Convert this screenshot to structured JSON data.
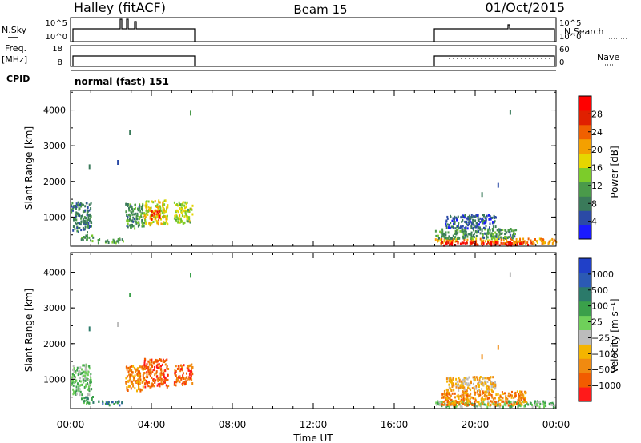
{
  "header": {
    "station": "Halley (fitACF)",
    "beam": "Beam 15",
    "date": "01/Oct/2015"
  },
  "status_panels": {
    "nsky": {
      "label": "N.Sky",
      "ticks": [
        "10^5",
        "10^0"
      ]
    },
    "nsearch": {
      "label": "N.Search",
      "ticks": [
        "10^5",
        "10^0"
      ]
    },
    "freq": {
      "label_top": "Freq.",
      "label_bottom": "[MHz]",
      "ticks": [
        "18",
        "8"
      ]
    },
    "nave": {
      "label": "Nave",
      "ticks": [
        "60",
        "0"
      ]
    },
    "cpid": {
      "label": "CPID",
      "value": "normal (fast) 151"
    }
  },
  "colors": {
    "power_scale": [
      "#1a1aff",
      "#2b4aa6",
      "#3a7a5a",
      "#4a9a4a",
      "#7ccc2a",
      "#e6d600",
      "#f4a000",
      "#f06000",
      "#e02000",
      "#ff0000"
    ],
    "velocity_scale": [
      "#ff1a1a",
      "#f25c00",
      "#f08a10",
      "#f4b400",
      "#bcbcbc",
      "#6fd05a",
      "#3aa04a",
      "#2b7a6a",
      "#2b5ab4",
      "#2040c8"
    ]
  },
  "chart_data": [
    {
      "type": "heatmap",
      "name": "power",
      "xlabel": "Time UT",
      "ylabel": "Slant Range [km]",
      "xticks": [
        "00:00",
        "04:00",
        "08:00",
        "12:00",
        "16:00",
        "20:00",
        "00:00"
      ],
      "xlim": [
        0,
        24
      ],
      "ylim": [
        180,
        4550
      ],
      "yticks": [
        1000,
        2000,
        3000,
        4000
      ],
      "colorbar": {
        "label": "Power [dB]",
        "ticks": [
          "4",
          "8",
          "12",
          "16",
          "20",
          "24",
          "28"
        ],
        "range": [
          0,
          32
        ]
      },
      "patches": [
        {
          "t0": 0.0,
          "t1": 1.0,
          "r0": 600,
          "r1": 1450,
          "level": 8
        },
        {
          "t0": 0.5,
          "t1": 1.1,
          "r0": 350,
          "r1": 550,
          "level": 10
        },
        {
          "t0": 1.3,
          "t1": 2.6,
          "r0": 300,
          "r1": 420,
          "level": 12
        },
        {
          "t0": 2.7,
          "t1": 3.6,
          "r0": 700,
          "r1": 1400,
          "level": 10
        },
        {
          "t0": 3.6,
          "t1": 4.8,
          "r0": 800,
          "r1": 1500,
          "level": 18
        },
        {
          "t0": 3.9,
          "t1": 4.4,
          "r0": 950,
          "r1": 1200,
          "level": 26
        },
        {
          "t0": 5.1,
          "t1": 6.0,
          "r0": 850,
          "r1": 1450,
          "level": 16
        },
        {
          "t0": 18.0,
          "t1": 24.0,
          "r0": 280,
          "r1": 420,
          "level": 22
        },
        {
          "t0": 18.3,
          "t1": 22.8,
          "r0": 230,
          "r1": 330,
          "level": 29
        },
        {
          "t0": 18.0,
          "t1": 22.0,
          "r0": 420,
          "r1": 700,
          "level": 10
        },
        {
          "t0": 18.5,
          "t1": 21.0,
          "r0": 700,
          "r1": 1100,
          "level": 6
        }
      ],
      "scatter": [
        {
          "t": 0.9,
          "r": 2480,
          "level": 8
        },
        {
          "t": 2.3,
          "r": 2600,
          "level": 6
        },
        {
          "t": 2.9,
          "r": 3430,
          "level": 8
        },
        {
          "t": 5.9,
          "r": 3980,
          "level": 10
        },
        {
          "t": 21.7,
          "r": 4000,
          "level": 8
        },
        {
          "t": 21.1,
          "r": 1960,
          "level": 6
        },
        {
          "t": 20.3,
          "r": 1700,
          "level": 8
        }
      ]
    },
    {
      "type": "heatmap",
      "name": "velocity",
      "xlabel": "Time UT",
      "ylabel": "Slant Range [km]",
      "xticks": [
        "00:00",
        "04:00",
        "08:00",
        "12:00",
        "16:00",
        "20:00",
        "00:00"
      ],
      "xlim": [
        0,
        24
      ],
      "ylim": [
        180,
        4550
      ],
      "yticks": [
        1000,
        2000,
        3000,
        4000
      ],
      "colorbar": {
        "label": "Velocity [m s⁻¹]",
        "ticks": [
          "1000",
          "500",
          "100",
          "25",
          "−25",
          "−100",
          "−500",
          "−1000"
        ]
      },
      "patches": [
        {
          "t0": 0.0,
          "t1": 1.0,
          "r0": 600,
          "r1": 1450,
          "level": 5
        },
        {
          "t0": 0.5,
          "t1": 1.1,
          "r0": 350,
          "r1": 550,
          "level": 6
        },
        {
          "t0": 1.3,
          "t1": 2.6,
          "r0": 300,
          "r1": 420,
          "level": 7
        },
        {
          "t0": 2.7,
          "t1": 3.6,
          "r0": 700,
          "r1": 1400,
          "level": 2
        },
        {
          "t0": 3.6,
          "t1": 4.8,
          "r0": 800,
          "r1": 1600,
          "level": 1
        },
        {
          "t0": 5.1,
          "t1": 6.0,
          "r0": 850,
          "r1": 1450,
          "level": 1
        },
        {
          "t0": 18.0,
          "t1": 24.0,
          "r0": 250,
          "r1": 420,
          "level": 5
        },
        {
          "t0": 18.3,
          "t1": 22.5,
          "r0": 300,
          "r1": 700,
          "level": 2
        },
        {
          "t0": 18.5,
          "t1": 21.0,
          "r0": 700,
          "r1": 1100,
          "level": 3
        }
      ],
      "scatter": [
        {
          "t": 0.9,
          "r": 2480,
          "level": 7
        },
        {
          "t": 2.3,
          "r": 2600,
          "level": 4
        },
        {
          "t": 2.9,
          "r": 3430,
          "level": 6
        },
        {
          "t": 5.9,
          "r": 3980,
          "level": 6
        },
        {
          "t": 21.7,
          "r": 4000,
          "level": 4
        },
        {
          "t": 21.1,
          "r": 1960,
          "level": 2
        },
        {
          "t": 20.3,
          "r": 1700,
          "level": 2
        }
      ]
    }
  ]
}
